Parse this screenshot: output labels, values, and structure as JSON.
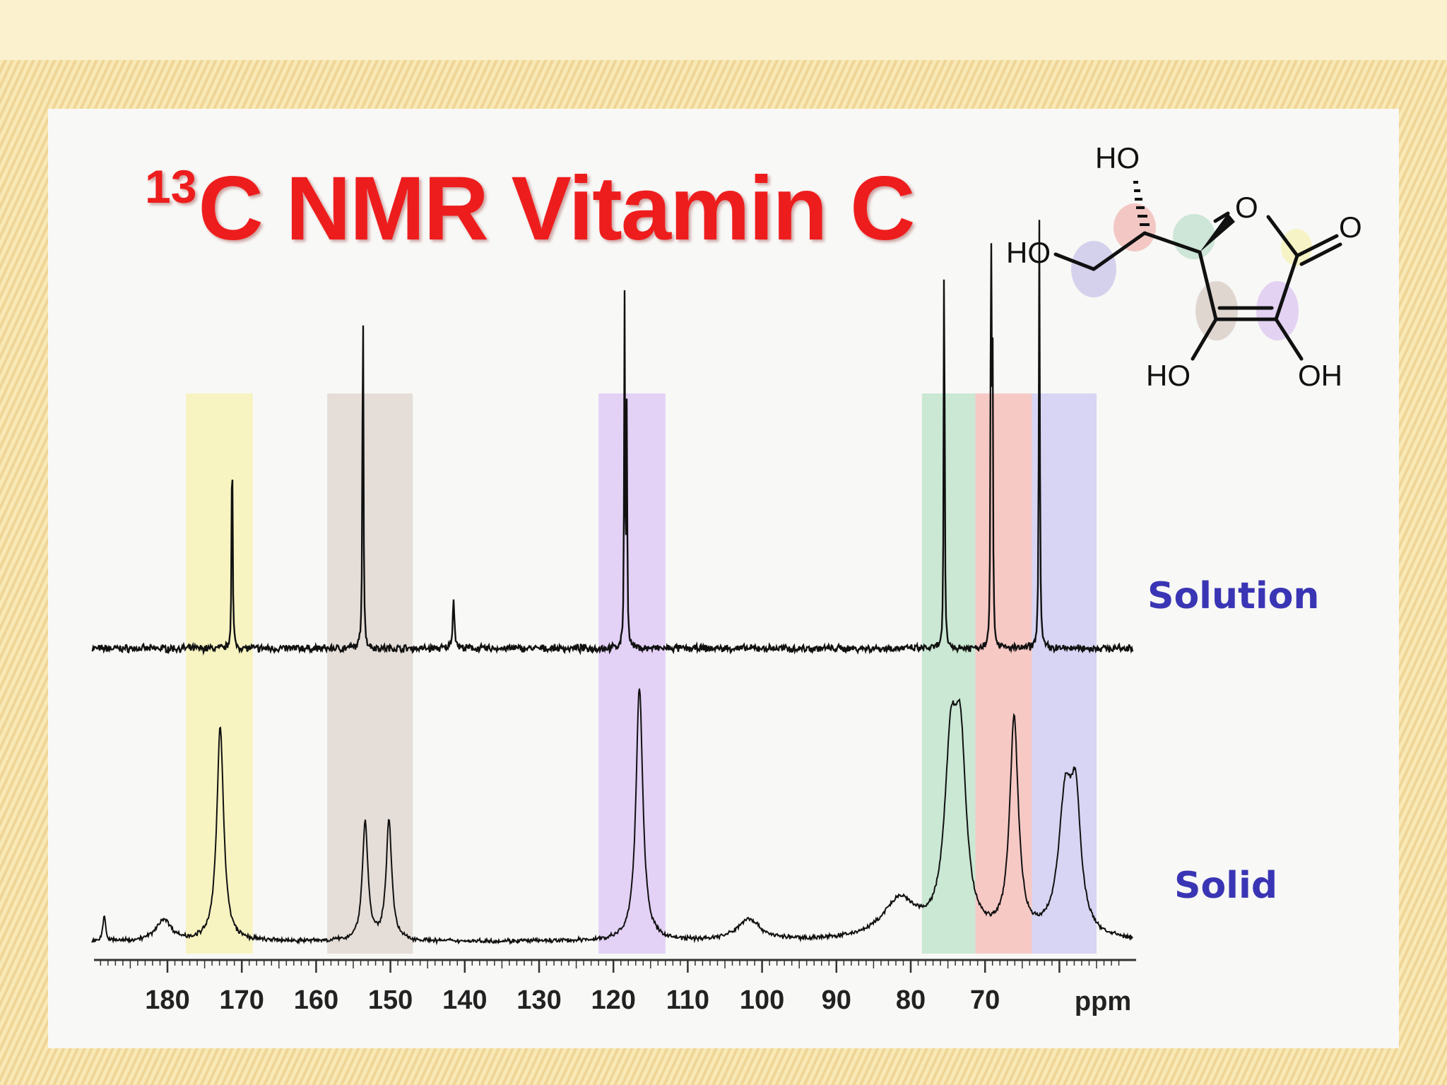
{
  "title": {
    "superscript": "13",
    "main": "C NMR Vitamin C"
  },
  "series_labels": {
    "solution": "Solution",
    "solid": "Solid"
  },
  "molecule": {
    "atoms": [
      "HO",
      "HO",
      "O",
      "O",
      "HO",
      "OH"
    ],
    "highlight_colors": [
      "#c9c4ea",
      "#f2b8b4",
      "#bfe0cc",
      "#f6f2b6",
      "#d8cbc4",
      "#dcc5f0"
    ]
  },
  "colors": {
    "title": "#ee1d1d",
    "series_label": "#3a35b4",
    "band_yellow": "#f6f3bd",
    "band_brown": "#e2d9d4",
    "band_purple": "#e0ccf6",
    "band_green": "#c4e6cf",
    "band_red": "#f6c3c0",
    "band_blue": "#d3d0f3"
  },
  "chart_data": {
    "type": "line",
    "xlabel": "ppm",
    "x_direction": "reversed",
    "xlim": [
      190,
      50
    ],
    "x_ticks": [
      180,
      170,
      160,
      150,
      140,
      130,
      120,
      110,
      100,
      90,
      80,
      70
    ],
    "ylim": [
      0,
      1
    ],
    "highlight_bands": [
      {
        "ppm_range": [
          177.5,
          168.5
        ],
        "color": "#f6f3bd"
      },
      {
        "ppm_range": [
          158.5,
          147
        ],
        "color": "#e2d9d4"
      },
      {
        "ppm_range": [
          122,
          113
        ],
        "color": "#e0ccf6"
      },
      {
        "ppm_range": [
          78.5,
          71.3
        ],
        "color": "#c4e6cf"
      },
      {
        "ppm_range": [
          71.3,
          63.7
        ],
        "color": "#f6c3c0"
      },
      {
        "ppm_range": [
          63.7,
          55
        ],
        "color": "#d3d0f3"
      }
    ],
    "series": [
      {
        "name": "Solution",
        "baseline": 0.58,
        "noise": 0.012,
        "peaks": [
          {
            "ppm": 171.3,
            "height": 0.92,
            "width": 0.08
          },
          {
            "ppm": 153.7,
            "height": 1.55,
            "width": 0.08
          },
          {
            "ppm": 141.5,
            "height": 0.2,
            "width": 0.15
          },
          {
            "ppm": 118.5,
            "height": 1.45,
            "width": 0.07
          },
          {
            "ppm": 118.2,
            "height": 1.0,
            "width": 0.07
          },
          {
            "ppm": 75.5,
            "height": 1.85,
            "width": 0.07
          },
          {
            "ppm": 69.2,
            "height": 1.88,
            "width": 0.07
          },
          {
            "ppm": 69.0,
            "height": 1.3,
            "width": 0.07
          },
          {
            "ppm": 62.7,
            "height": 1.8,
            "width": 0.08
          }
        ]
      },
      {
        "name": "Solid",
        "baseline": 0.04,
        "noise": 0.008,
        "peaks": [
          {
            "ppm": 188.5,
            "height": 0.12,
            "width": 0.2
          },
          {
            "ppm": 180.5,
            "height": 0.1,
            "width": 1.2
          },
          {
            "ppm": 172.9,
            "height": 1.0,
            "width": 0.55
          },
          {
            "ppm": 153.4,
            "height": 0.55,
            "width": 0.45
          },
          {
            "ppm": 150.2,
            "height": 0.56,
            "width": 0.45
          },
          {
            "ppm": 116.5,
            "height": 1.18,
            "width": 0.55
          },
          {
            "ppm": 101.8,
            "height": 0.1,
            "width": 1.8
          },
          {
            "ppm": 81.5,
            "height": 0.18,
            "width": 2.8
          },
          {
            "ppm": 74.6,
            "height": 0.8,
            "width": 1.0
          },
          {
            "ppm": 73.3,
            "height": 0.76,
            "width": 0.9
          },
          {
            "ppm": 66.1,
            "height": 1.0,
            "width": 0.7
          },
          {
            "ppm": 59.2,
            "height": 0.62,
            "width": 1.1
          },
          {
            "ppm": 57.8,
            "height": 0.54,
            "width": 0.8
          }
        ]
      }
    ]
  }
}
